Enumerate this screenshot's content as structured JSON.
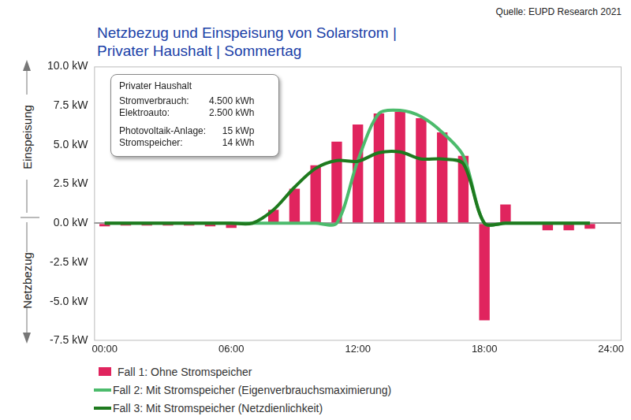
{
  "chart_data": {
    "type": "bar",
    "title": [
      "Netzbezug und Einspeisung von Solarstrom |",
      "Privater Haushalt | Sommertag"
    ],
    "source": "Quelle: EUPD Research 2021",
    "ylabel_positive": "Einspeisung",
    "ylabel_negative": "Netzbezug",
    "info_box": {
      "title": "Privater Haushalt",
      "groups": [
        [
          [
            "Stromverbrauch:",
            "4.500 kWh"
          ],
          [
            "Elektroauto:",
            "2.500 kWh"
          ]
        ],
        [
          [
            "Photovoltaik-Anlage:",
            "15 kWp"
          ],
          [
            "Stromspeicher:",
            "14 kWh"
          ]
        ]
      ]
    },
    "x": [
      0,
      1,
      2,
      3,
      4,
      5,
      6,
      7,
      8,
      9,
      10,
      11,
      12,
      13,
      14,
      15,
      16,
      17,
      18,
      19,
      20,
      21,
      22,
      23
    ],
    "xlim": [
      -0.5,
      24.5
    ],
    "xticks": [
      {
        "value": 0,
        "label": "00:00"
      },
      {
        "value": 6,
        "label": "06:00"
      },
      {
        "value": 12,
        "label": "12:00"
      },
      {
        "value": 18,
        "label": "18:00"
      },
      {
        "value": 24,
        "label": "24:00"
      }
    ],
    "ylim": [
      -7.5,
      10
    ],
    "yticks": [
      {
        "value": -7.5,
        "label": "-7.5 kW"
      },
      {
        "value": -5,
        "label": "-5.0 kW"
      },
      {
        "value": -2.5,
        "label": "-2.5 kW"
      },
      {
        "value": 0,
        "label": "0.0 kW"
      },
      {
        "value": 2.5,
        "label": "2.5 kW"
      },
      {
        "value": 5,
        "label": "5.0 kW"
      },
      {
        "value": 7.5,
        "label": "7.5 kW"
      },
      {
        "value": 10,
        "label": "10.0 kW"
      }
    ],
    "grid": false,
    "legend": "bottom-left",
    "series": [
      {
        "name": "Fall 1: Ohne Stromspeicher",
        "type": "bar",
        "color": "#e0245e",
        "values": [
          -0.2,
          -0.15,
          -0.15,
          -0.15,
          -0.15,
          -0.2,
          -0.3,
          0,
          0.85,
          2.2,
          3.7,
          5.2,
          6.3,
          7.0,
          7.1,
          6.7,
          5.8,
          4.3,
          -6.2,
          1.2,
          0,
          -0.45,
          -0.45,
          -0.35
        ]
      },
      {
        "name": "Fall 2: Mit Stromspeicher (Eigenverbrauchsmaximierung)",
        "type": "line",
        "color": "#4cbb6c",
        "marker": "none",
        "line_style": "solid",
        "values": [
          0,
          0,
          0,
          0,
          0,
          0,
          0,
          0,
          0,
          0,
          0,
          0,
          4.0,
          7.0,
          7.2,
          6.8,
          5.8,
          4.3,
          0,
          0,
          0,
          0,
          0,
          0
        ]
      },
      {
        "name": "Fall 3: Mit Stromspeicher (Netzdienlichkeit)",
        "type": "line",
        "color": "#1e7a1e",
        "marker": "none",
        "line_style": "solid",
        "values": [
          0,
          0,
          0,
          0,
          0,
          0,
          0,
          0,
          0.85,
          2.3,
          3.5,
          4.0,
          3.95,
          4.5,
          4.55,
          4.1,
          4.1,
          3.8,
          0,
          0,
          0,
          0,
          0,
          0
        ]
      }
    ]
  }
}
